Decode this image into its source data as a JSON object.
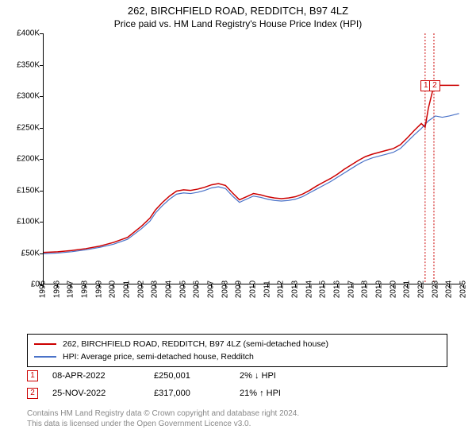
{
  "title": "262, BIRCHFIELD ROAD, REDDITCH, B97 4LZ",
  "subtitle": "Price paid vs. HM Land Registry's House Price Index (HPI)",
  "chart": {
    "type": "line",
    "background_color": "#ffffff",
    "axis_color": "#000000",
    "xlim": [
      1995,
      2025
    ],
    "ylim": [
      0,
      400000
    ],
    "ytick_step": 50000,
    "ytick_labels": [
      "£0",
      "£50K",
      "£100K",
      "£150K",
      "£200K",
      "£250K",
      "£300K",
      "£350K",
      "£400K"
    ],
    "xtick_step": 1,
    "xtick_labels": [
      "1995",
      "1996",
      "1997",
      "1998",
      "1999",
      "2000",
      "2001",
      "2002",
      "2003",
      "2004",
      "2005",
      "2006",
      "2007",
      "2008",
      "2009",
      "2010",
      "2011",
      "2012",
      "2013",
      "2014",
      "2015",
      "2016",
      "2017",
      "2018",
      "2019",
      "2020",
      "2021",
      "2022",
      "2023",
      "2024",
      "2025"
    ],
    "tick_fontsize": 10,
    "vlines": [
      {
        "x": 2022.27,
        "color": "#cc0000",
        "dash": "2,2",
        "width": 1
      },
      {
        "x": 2022.9,
        "color": "#cc0000",
        "dash": "2,2",
        "width": 1
      }
    ],
    "markers": [
      {
        "idx": "1",
        "x": 2022.27,
        "y": 317000,
        "color": "#cc0000"
      },
      {
        "idx": "2",
        "x": 2022.9,
        "y": 317000,
        "color": "#cc0000"
      }
    ],
    "series": [
      {
        "id": "price_paid",
        "label": "262, BIRCHFIELD ROAD, REDDITCH, B97 4LZ (semi-detached house)",
        "color": "#cc0000",
        "line_width": 1.5,
        "points": [
          [
            1995.0,
            50000
          ],
          [
            1996.0,
            51000
          ],
          [
            1997.0,
            53000
          ],
          [
            1998.0,
            56000
          ],
          [
            1999.0,
            60000
          ],
          [
            2000.0,
            66000
          ],
          [
            2001.0,
            74000
          ],
          [
            2002.0,
            92000
          ],
          [
            2002.6,
            105000
          ],
          [
            2003.0,
            118000
          ],
          [
            2003.5,
            130000
          ],
          [
            2004.0,
            140000
          ],
          [
            2004.5,
            148000
          ],
          [
            2005.0,
            150000
          ],
          [
            2005.5,
            149000
          ],
          [
            2006.0,
            151000
          ],
          [
            2006.5,
            154000
          ],
          [
            2007.0,
            158000
          ],
          [
            2007.5,
            160000
          ],
          [
            2008.0,
            157000
          ],
          [
            2008.5,
            145000
          ],
          [
            2009.0,
            134000
          ],
          [
            2009.5,
            139000
          ],
          [
            2010.0,
            144000
          ],
          [
            2010.5,
            142000
          ],
          [
            2011.0,
            139000
          ],
          [
            2011.5,
            137000
          ],
          [
            2012.0,
            136000
          ],
          [
            2012.5,
            137000
          ],
          [
            2013.0,
            139000
          ],
          [
            2013.5,
            143000
          ],
          [
            2014.0,
            149000
          ],
          [
            2014.5,
            156000
          ],
          [
            2015.0,
            162000
          ],
          [
            2015.5,
            168000
          ],
          [
            2016.0,
            175000
          ],
          [
            2016.5,
            183000
          ],
          [
            2017.0,
            190000
          ],
          [
            2017.5,
            197000
          ],
          [
            2018.0,
            203000
          ],
          [
            2018.5,
            207000
          ],
          [
            2019.0,
            210000
          ],
          [
            2019.5,
            213000
          ],
          [
            2020.0,
            216000
          ],
          [
            2020.5,
            222000
          ],
          [
            2021.0,
            233000
          ],
          [
            2021.5,
            245000
          ],
          [
            2022.0,
            256000
          ],
          [
            2022.27,
            250001
          ],
          [
            2022.5,
            280000
          ],
          [
            2022.9,
            317000
          ],
          [
            2023.0,
            317000
          ],
          [
            2024.7,
            317000
          ]
        ]
      },
      {
        "id": "hpi",
        "label": "HPI: Average price, semi-detached house, Redditch",
        "color": "#4a72c8",
        "line_width": 1.2,
        "points": [
          [
            1995.0,
            48000
          ],
          [
            1996.0,
            49000
          ],
          [
            1997.0,
            51000
          ],
          [
            1998.0,
            54000
          ],
          [
            1999.0,
            58000
          ],
          [
            2000.0,
            63000
          ],
          [
            2001.0,
            71000
          ],
          [
            2002.0,
            88000
          ],
          [
            2002.6,
            100000
          ],
          [
            2003.0,
            113000
          ],
          [
            2003.5,
            125000
          ],
          [
            2004.0,
            135000
          ],
          [
            2004.5,
            143000
          ],
          [
            2005.0,
            145000
          ],
          [
            2005.5,
            144000
          ],
          [
            2006.0,
            146000
          ],
          [
            2006.5,
            149000
          ],
          [
            2007.0,
            153000
          ],
          [
            2007.5,
            155000
          ],
          [
            2008.0,
            152000
          ],
          [
            2008.5,
            140000
          ],
          [
            2009.0,
            130000
          ],
          [
            2009.5,
            135000
          ],
          [
            2010.0,
            140000
          ],
          [
            2010.5,
            138000
          ],
          [
            2011.0,
            135000
          ],
          [
            2011.5,
            133000
          ],
          [
            2012.0,
            132000
          ],
          [
            2012.5,
            133000
          ],
          [
            2013.0,
            135000
          ],
          [
            2013.5,
            139000
          ],
          [
            2014.0,
            145000
          ],
          [
            2014.5,
            151000
          ],
          [
            2015.0,
            157000
          ],
          [
            2015.5,
            163000
          ],
          [
            2016.0,
            170000
          ],
          [
            2016.5,
            177000
          ],
          [
            2017.0,
            184000
          ],
          [
            2017.5,
            191000
          ],
          [
            2018.0,
            197000
          ],
          [
            2018.5,
            201000
          ],
          [
            2019.0,
            204000
          ],
          [
            2019.5,
            207000
          ],
          [
            2020.0,
            210000
          ],
          [
            2020.5,
            216000
          ],
          [
            2021.0,
            227000
          ],
          [
            2021.5,
            238000
          ],
          [
            2022.0,
            248000
          ],
          [
            2022.5,
            260000
          ],
          [
            2023.0,
            268000
          ],
          [
            2023.5,
            266000
          ],
          [
            2024.0,
            268000
          ],
          [
            2024.7,
            272000
          ]
        ]
      }
    ]
  },
  "legend": {
    "items": [
      {
        "color": "#cc0000",
        "label": "262, BIRCHFIELD ROAD, REDDITCH, B97 4LZ (semi-detached house)"
      },
      {
        "color": "#4a72c8",
        "label": "HPI: Average price, semi-detached house, Redditch"
      }
    ]
  },
  "data_rows": [
    {
      "idx": "1",
      "color": "#cc0000",
      "date": "08-APR-2022",
      "price": "£250,001",
      "pct": "2%",
      "arrow": "↓",
      "suffix": "HPI"
    },
    {
      "idx": "2",
      "color": "#cc0000",
      "date": "25-NOV-2022",
      "price": "£317,000",
      "pct": "21%",
      "arrow": "↑",
      "suffix": "HPI"
    }
  ],
  "footer": {
    "line1": "Contains HM Land Registry data © Crown copyright and database right 2024.",
    "line2": "This data is licensed under the Open Government Licence v3.0.",
    "color": "#888888"
  }
}
